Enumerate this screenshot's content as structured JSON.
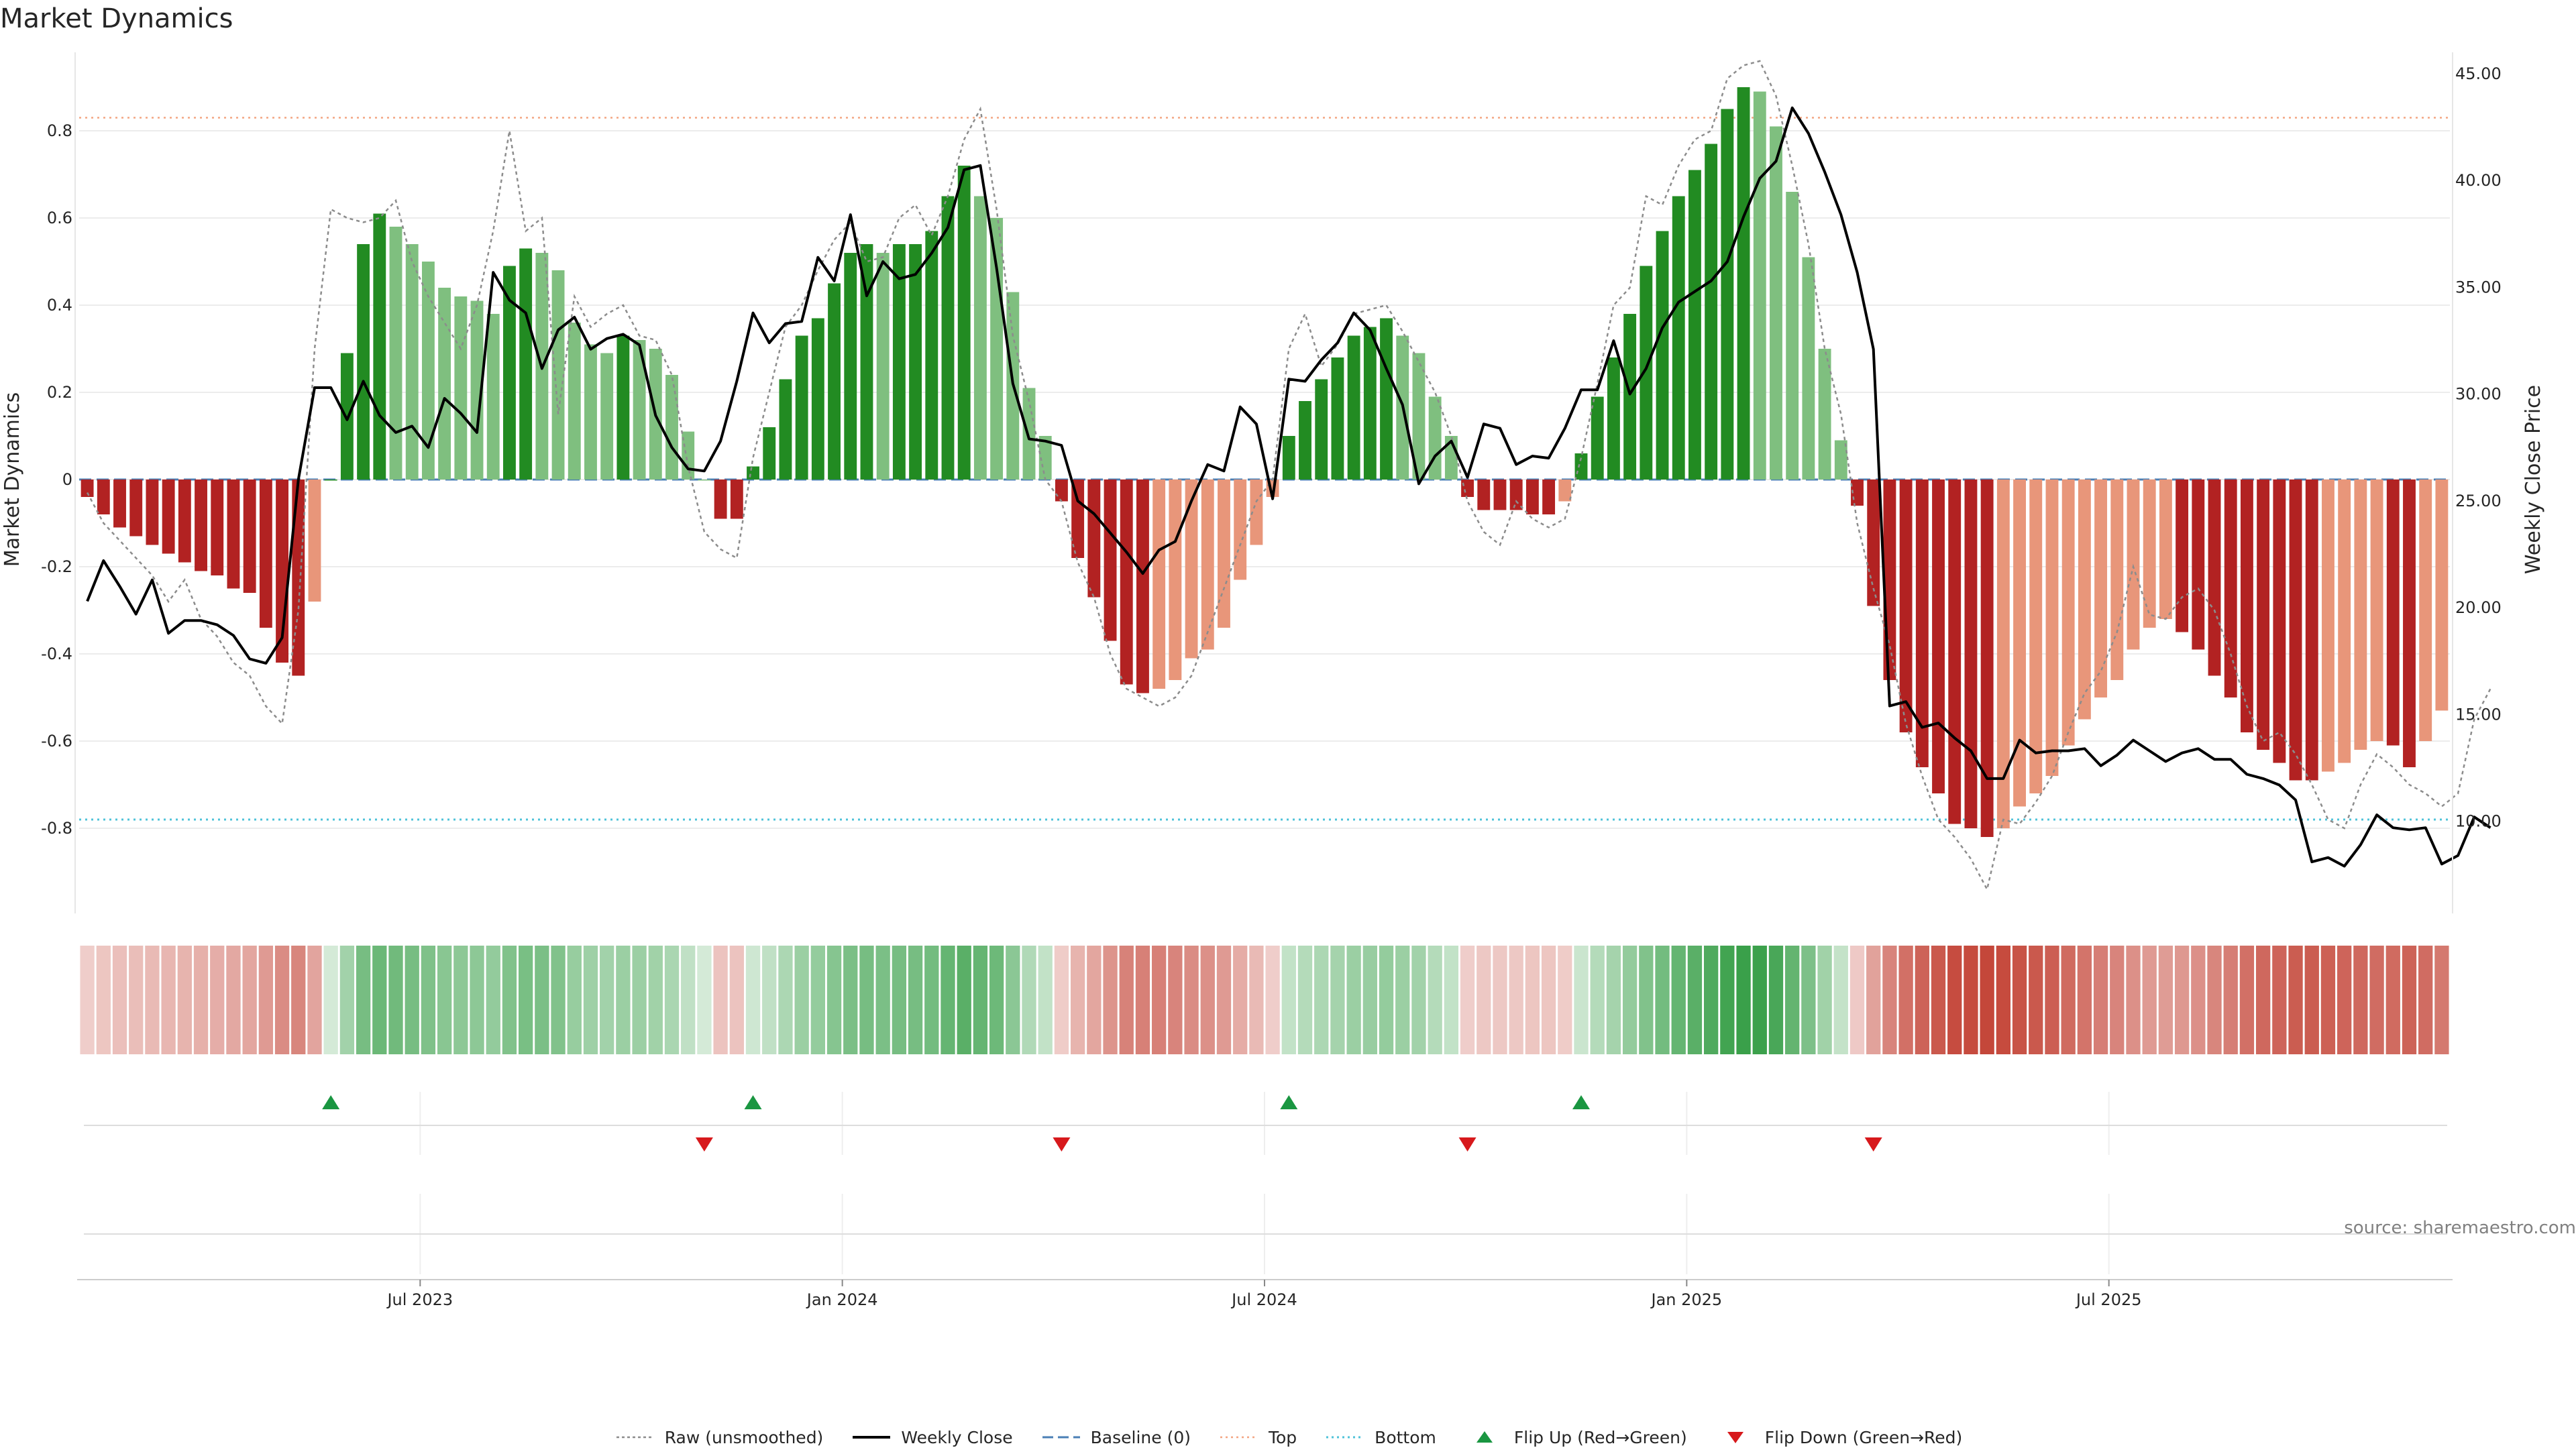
{
  "title": "Market Dynamics",
  "source": "source: sharemaestro.com",
  "colors": {
    "green_strong": "#228B22",
    "green_light": "#7fbf7f",
    "red_strong": "#b22222",
    "red_light": "#e8967a",
    "top_line": "#f4a582",
    "bottom_line": "#4fc3d9",
    "baseline": "#4a7fb5",
    "raw_line": "#8c8c8c",
    "close_line": "#000000",
    "flip_up": "#1a9641",
    "flip_down": "#d7191c"
  },
  "legend": [
    {
      "label": "Raw (unsmoothed)",
      "style": "dotted-gray"
    },
    {
      "label": "Weekly Close",
      "style": "solid-black"
    },
    {
      "label": "Baseline (0)",
      "style": "dashed-blue"
    },
    {
      "label": "Top",
      "style": "dotted-orange"
    },
    {
      "label": "Bottom",
      "style": "dotted-cyan"
    },
    {
      "label": "Flip Up (Red→Green)",
      "style": "triangle-up"
    },
    {
      "label": "Flip Down (Green→Red)",
      "style": "triangle-down"
    }
  ],
  "chart_data": {
    "type": "bar",
    "title": "Market Dynamics",
    "ylabel": "Market Dynamics",
    "y2label": "Weekly Close Price",
    "ylim": [
      -0.98,
      0.98
    ],
    "y2lim": [
      6.0,
      46.0
    ],
    "yticks": [
      "-0.8",
      "-0.6",
      "-0.4",
      "-0.2",
      "0",
      "0.2",
      "0.4",
      "0.6",
      "0.8"
    ],
    "y2ticks": [
      "10.00",
      "15.00",
      "20.00",
      "25.00",
      "30.00",
      "35.00",
      "40.00",
      "45.00"
    ],
    "xticks": [
      {
        "label": "Jul 2023",
        "index": 20.5
      },
      {
        "label": "Jan 2024",
        "index": 46.5
      },
      {
        "label": "Jul 2024",
        "index": 72.5
      },
      {
        "label": "Jan 2025",
        "index": 98.5
      },
      {
        "label": "Jul 2025",
        "index": 124.5
      }
    ],
    "top": 0.83,
    "bottom": -0.78,
    "baseline": 0,
    "dynamics": [
      -0.04,
      -0.08,
      -0.11,
      -0.13,
      -0.15,
      -0.17,
      -0.19,
      -0.21,
      -0.22,
      -0.25,
      -0.26,
      -0.34,
      -0.42,
      -0.45,
      -0.28,
      0.0,
      0.29,
      0.54,
      0.61,
      0.58,
      0.54,
      0.5,
      0.44,
      0.42,
      0.41,
      0.38,
      0.49,
      0.53,
      0.52,
      0.48,
      0.36,
      0.31,
      0.29,
      0.33,
      0.32,
      0.3,
      0.24,
      0.11,
      0.0,
      -0.09,
      -0.09,
      0.03,
      0.12,
      0.23,
      0.33,
      0.37,
      0.45,
      0.52,
      0.54,
      0.52,
      0.54,
      0.54,
      0.57,
      0.65,
      0.72,
      0.65,
      0.6,
      0.43,
      0.21,
      0.1,
      -0.05,
      -0.18,
      -0.27,
      -0.37,
      -0.47,
      -0.49,
      -0.48,
      -0.46,
      -0.41,
      -0.39,
      -0.34,
      -0.23,
      -0.15,
      -0.04,
      0.1,
      0.18,
      0.23,
      0.28,
      0.33,
      0.35,
      0.37,
      0.33,
      0.29,
      0.19,
      0.1,
      -0.04,
      -0.07,
      -0.07,
      -0.07,
      -0.08,
      -0.08,
      -0.05,
      0.06,
      0.19,
      0.28,
      0.38,
      0.49,
      0.57,
      0.65,
      0.71,
      0.77,
      0.85,
      0.9,
      0.89,
      0.81,
      0.66,
      0.51,
      0.3,
      0.09,
      -0.06,
      -0.29,
      -0.46,
      -0.58,
      -0.66,
      -0.72,
      -0.79,
      -0.8,
      -0.82,
      -0.8,
      -0.75,
      -0.72,
      -0.68,
      -0.61,
      -0.55,
      -0.5,
      -0.46,
      -0.39,
      -0.34,
      -0.32,
      -0.35,
      -0.39,
      -0.45,
      -0.5,
      -0.58,
      -0.62,
      -0.65,
      -0.69,
      -0.69,
      -0.67,
      -0.65,
      -0.62,
      -0.6,
      -0.61,
      -0.66,
      -0.6,
      -0.53
    ],
    "raw": [
      -0.03,
      -0.1,
      -0.14,
      -0.18,
      -0.22,
      -0.28,
      -0.23,
      -0.32,
      -0.36,
      -0.42,
      -0.45,
      -0.52,
      -0.56,
      -0.3,
      0.3,
      0.62,
      0.6,
      0.59,
      0.6,
      0.64,
      0.5,
      0.42,
      0.36,
      0.3,
      0.4,
      0.57,
      0.8,
      0.57,
      0.6,
      0.15,
      0.42,
      0.35,
      0.38,
      0.4,
      0.33,
      0.32,
      0.24,
      0.03,
      -0.12,
      -0.16,
      -0.18,
      0.05,
      0.2,
      0.35,
      0.4,
      0.48,
      0.55,
      0.59,
      0.5,
      0.51,
      0.6,
      0.63,
      0.56,
      0.65,
      0.78,
      0.85,
      0.62,
      0.33,
      0.18,
      0.0,
      -0.05,
      -0.19,
      -0.27,
      -0.4,
      -0.48,
      -0.5,
      -0.52,
      -0.5,
      -0.45,
      -0.35,
      -0.25,
      -0.15,
      -0.05,
      0.0,
      0.3,
      0.38,
      0.26,
      0.31,
      0.38,
      0.39,
      0.4,
      0.34,
      0.27,
      0.2,
      0.1,
      -0.05,
      -0.12,
      -0.15,
      -0.05,
      -0.09,
      -0.11,
      -0.09,
      0.05,
      0.22,
      0.4,
      0.44,
      0.65,
      0.63,
      0.72,
      0.78,
      0.8,
      0.92,
      0.95,
      0.96,
      0.88,
      0.72,
      0.54,
      0.3,
      0.15,
      -0.1,
      -0.25,
      -0.38,
      -0.56,
      -0.68,
      -0.78,
      -0.82,
      -0.87,
      -0.94,
      -0.78,
      -0.79,
      -0.74,
      -0.68,
      -0.58,
      -0.49,
      -0.44,
      -0.35,
      -0.2,
      -0.31,
      -0.32,
      -0.27,
      -0.25,
      -0.3,
      -0.4,
      -0.52,
      -0.6,
      -0.58,
      -0.63,
      -0.7,
      -0.78,
      -0.8,
      -0.7,
      -0.63,
      -0.66,
      -0.7,
      -0.72,
      -0.75,
      -0.72,
      -0.55,
      -0.48
    ],
    "close": [
      20.3,
      22.2,
      21.0,
      19.7,
      21.3,
      18.8,
      19.4,
      19.4,
      19.2,
      18.7,
      17.6,
      17.4,
      18.6,
      26.0,
      30.3,
      30.3,
      28.8,
      30.6,
      29.0,
      28.2,
      28.5,
      27.5,
      29.8,
      29.1,
      28.2,
      35.7,
      34.4,
      33.8,
      31.2,
      33.0,
      33.6,
      32.1,
      32.6,
      32.8,
      32.3,
      29.0,
      27.5,
      26.5,
      26.4,
      27.8,
      30.6,
      33.8,
      32.4,
      33.3,
      33.4,
      36.4,
      35.3,
      38.4,
      34.6,
      36.2,
      35.4,
      35.6,
      36.6,
      37.8,
      40.5,
      40.7,
      35.9,
      30.5,
      27.9,
      27.8,
      27.6,
      25.0,
      24.4,
      23.5,
      22.6,
      21.6,
      22.7,
      23.1,
      25.0,
      26.7,
      26.4,
      29.4,
      28.6,
      25.1,
      30.7,
      30.6,
      31.6,
      32.4,
      33.8,
      33.0,
      31.2,
      29.5,
      25.8,
      27.1,
      27.8,
      26.1,
      28.6,
      28.4,
      26.7,
      27.1,
      27.0,
      28.4,
      30.2,
      30.2,
      32.5,
      30.0,
      31.2,
      33.1,
      34.3,
      34.8,
      35.3,
      36.2,
      38.3,
      40.1,
      40.9,
      43.4,
      42.2,
      40.4,
      38.4,
      35.7,
      32.1,
      15.4,
      15.6,
      14.4,
      14.6,
      13.9,
      13.3,
      12.0,
      12.0,
      13.8,
      13.2,
      13.3,
      13.3,
      13.4,
      12.6,
      13.1,
      13.8,
      13.3,
      12.8,
      13.2,
      13.4,
      12.9,
      12.9,
      12.2,
      12.0,
      11.7,
      11.0,
      8.1,
      8.3,
      7.9,
      8.9,
      10.3,
      9.7,
      9.6,
      9.7,
      8.0,
      8.4,
      10.2,
      9.7
    ],
    "flips": [
      {
        "type": "up",
        "index": 15
      },
      {
        "type": "down",
        "index": 38
      },
      {
        "type": "up",
        "index": 41
      },
      {
        "type": "down",
        "index": 60
      },
      {
        "type": "up",
        "index": 74
      },
      {
        "type": "down",
        "index": 85
      },
      {
        "type": "up",
        "index": 92
      },
      {
        "type": "down",
        "index": 110
      }
    ]
  }
}
